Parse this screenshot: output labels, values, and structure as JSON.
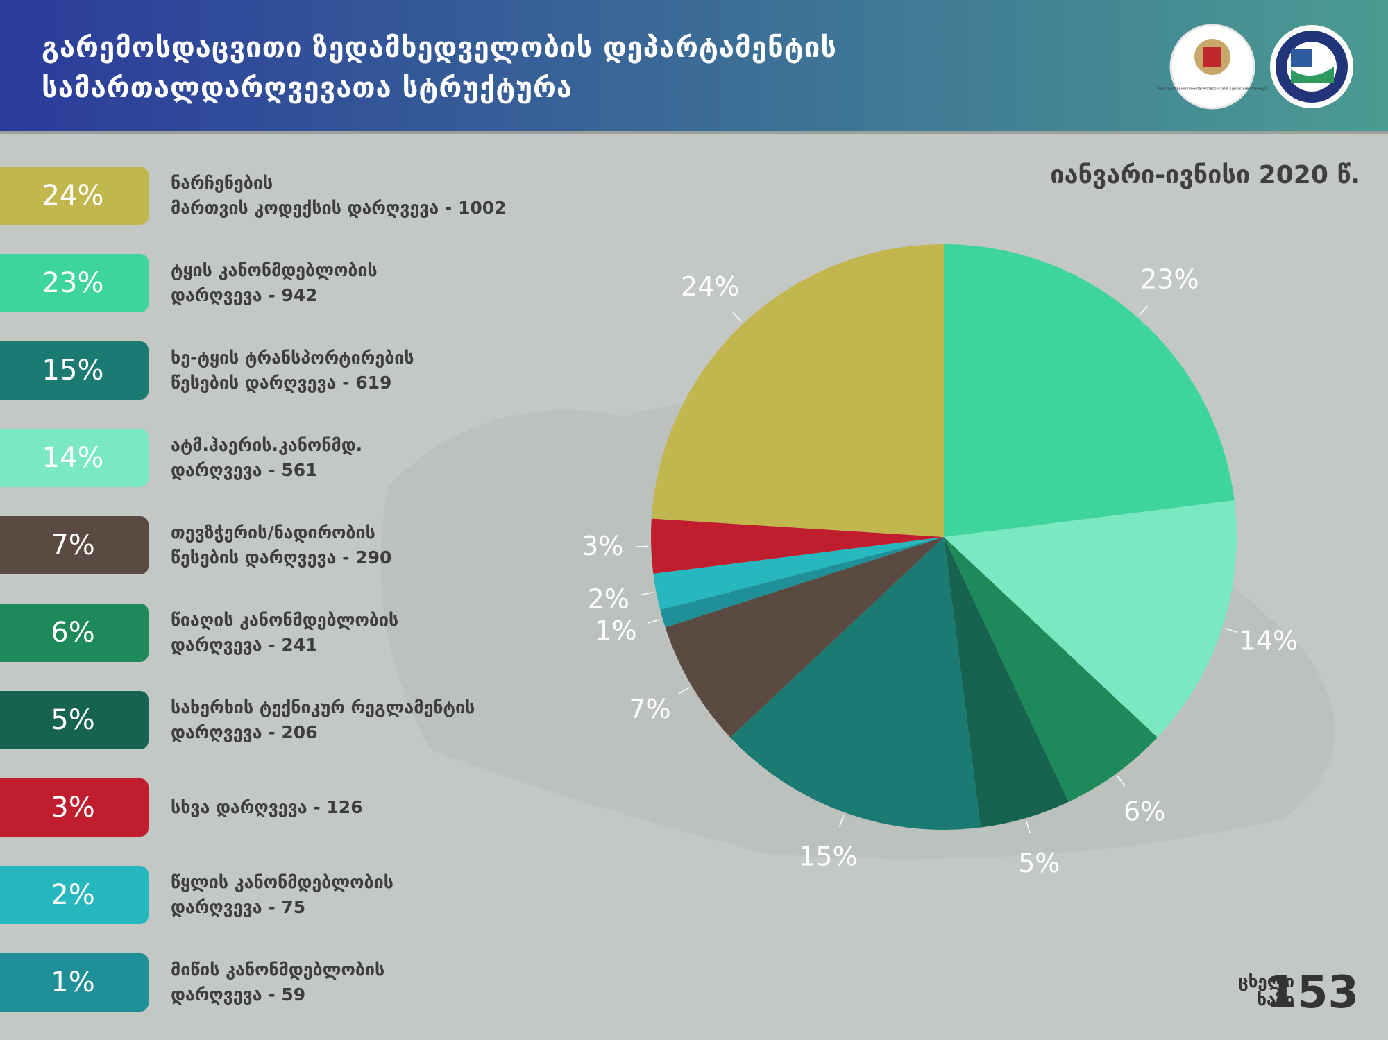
{
  "chart_data": {
    "type": "pie",
    "title": "გარემოსდაცვითი ზედამხედველობის დეპარტამენტის\nსამართალდარღვევათა სტრუქტურა",
    "subtitle": "იანვარი-ივნისი 2020 წ.",
    "categories": [
      "ნარჩენების\nმართვის კოდექსის დარღვევა - 1002",
      "ტყის კანონმდებლობის\nდარღვევა - 942",
      "ხე-ტყის ტრანსპორტირების\nწესების დარღვევა  - 619",
      "ატმ.ჰაერის.კანონმდ.\nდარღვევა - 561",
      "თევზჭერის/ნადირობის\nწესების დარღვევა - 290",
      "წიაღის კანონმდებლობის\nდარღვევა - 241",
      "სახერხის ტექნიკურ რეგლამენტის\nდარღვევა - 206",
      "სხვა დარღვევა - 126",
      "წყლის კანონმდებლობის\nდარღვევა - 75",
      "მიწის კანონმდებლობის\nდარღვევა - 59"
    ],
    "values": [
      24,
      23,
      15,
      14,
      7,
      6,
      5,
      3,
      2,
      1
    ],
    "value_labels": [
      "24%",
      "23%",
      "15%",
      "14%",
      "7%",
      "6%",
      "5%",
      "3%",
      "2%",
      "1%"
    ],
    "colors": [
      "#c2b74e",
      "#3dd49e",
      "#1b7b73",
      "#7ae8c0",
      "#5b4a42",
      "#1e8a5a",
      "#166350",
      "#c01d2e",
      "#27b7bf",
      "#1f8f98"
    ]
  },
  "logos": {
    "ministry": "Ministry of Environmental Protection and Agriculture of Georgia"
  },
  "footer": {
    "hotline_label": "ცხელი\nხაზი",
    "hotline_number": "153"
  }
}
